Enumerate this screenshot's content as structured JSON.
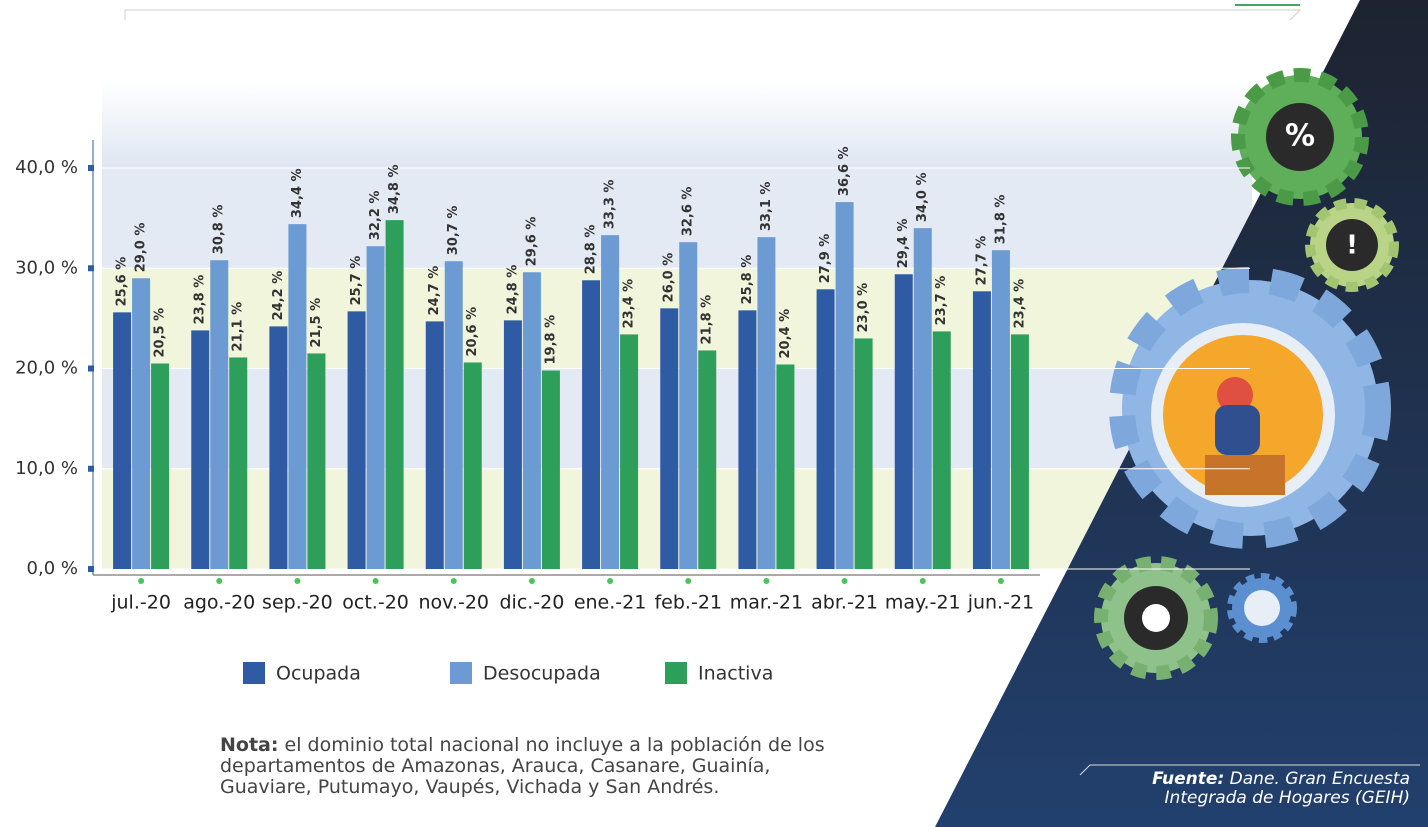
{
  "chart_data": {
    "type": "bar",
    "categories": [
      "jul.-20",
      "ago.-20",
      "sep.-20",
      "oct.-20",
      "nov.-20",
      "dic.-20",
      "ene.-21",
      "feb.-21",
      "mar.-21",
      "abr.-21",
      "may.-21",
      "jun.-21"
    ],
    "series": [
      {
        "name": "Ocupada",
        "color": "#2e5ba3",
        "values": [
          25.6,
          23.8,
          24.2,
          25.7,
          24.7,
          24.8,
          28.8,
          26.0,
          25.8,
          27.9,
          29.4,
          27.7
        ],
        "value_labels": [
          "25,6 %",
          "23,8 %",
          "24,2 %",
          "25,7 %",
          "24,7 %",
          "24,8 %",
          "28,8 %",
          "26,0 %",
          "25,8 %",
          "27,9 %",
          "29,4 %",
          "27,7 %"
        ]
      },
      {
        "name": "Desocupada",
        "color": "#6b9bd2",
        "values": [
          29.0,
          30.8,
          34.4,
          32.2,
          30.7,
          29.6,
          33.3,
          32.6,
          33.1,
          36.6,
          34.0,
          31.8
        ],
        "value_labels": [
          "29,0 %",
          "30,8 %",
          "34,4 %",
          "32,2 %",
          "30,7 %",
          "29,6 %",
          "33,3 %",
          "32,6 %",
          "33,1 %",
          "36,6 %",
          "34,0 %",
          "31,8 %"
        ]
      },
      {
        "name": "Inactiva",
        "color": "#2e9e5b",
        "values": [
          20.5,
          21.1,
          21.5,
          34.8,
          20.6,
          19.8,
          23.4,
          21.8,
          20.4,
          23.0,
          23.7,
          23.4
        ],
        "value_labels": [
          "20,5 %",
          "21,1 %",
          "21,5 %",
          "34,8 %",
          "20,6 %",
          "19,8 %",
          "23,4 %",
          "21,8 %",
          "20,4 %",
          "23,0 %",
          "23,7 %",
          "23,4 %"
        ]
      }
    ],
    "ylim": [
      0,
      40
    ],
    "yticks": [
      {
        "value": 0,
        "label": "0,0 %"
      },
      {
        "value": 10,
        "label": "10,0 %"
      },
      {
        "value": 20,
        "label": "20,0 %"
      },
      {
        "value": 30,
        "label": "30,0 %"
      },
      {
        "value": 40,
        "label": "40,0 %"
      }
    ],
    "grid": true,
    "legend": "bottom"
  },
  "note": {
    "label": "Nota:",
    "text": "el dominio total nacional no incluye a la población de los departamentos de Amazonas, Arauca, Casanare, Guainía, Guaviare, Putumayo, Vaupés, Vichada y San Andrés."
  },
  "source": {
    "label": "Fuente:",
    "text": "Dane. Gran Encuesta Integrada de Hogares (GEIH)"
  }
}
